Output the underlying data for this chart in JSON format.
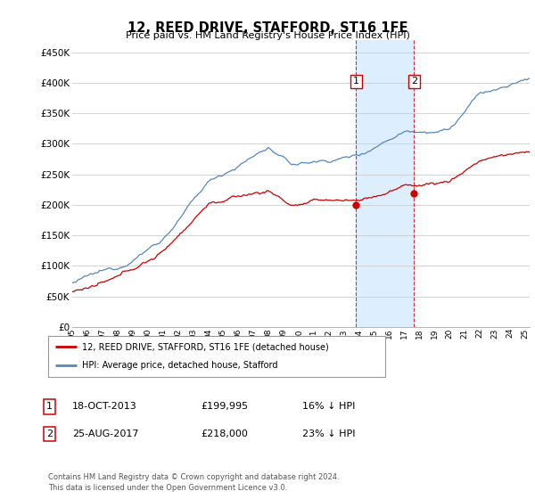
{
  "title": "12, REED DRIVE, STAFFORD, ST16 1FE",
  "subtitle": "Price paid vs. HM Land Registry's House Price Index (HPI)",
  "ytick_values": [
    0,
    50000,
    100000,
    150000,
    200000,
    250000,
    300000,
    350000,
    400000,
    450000
  ],
  "ylim": [
    0,
    470000
  ],
  "xlim_start": 1995.0,
  "xlim_end": 2025.3,
  "hpi_color": "#5588bb",
  "price_color": "#cc0000",
  "sale1_date": 2013.8,
  "sale1_price": 199995,
  "sale2_date": 2017.65,
  "sale2_price": 218000,
  "legend_label1": "12, REED DRIVE, STAFFORD, ST16 1FE (detached house)",
  "legend_label2": "HPI: Average price, detached house, Stafford",
  "table_row1_num": "1",
  "table_row1_date": "18-OCT-2013",
  "table_row1_price": "£199,995",
  "table_row1_note": "16% ↓ HPI",
  "table_row2_num": "2",
  "table_row2_date": "25-AUG-2017",
  "table_row2_price": "£218,000",
  "table_row2_note": "23% ↓ HPI",
  "footer": "Contains HM Land Registry data © Crown copyright and database right 2024.\nThis data is licensed under the Open Government Licence v3.0.",
  "background_color": "#ffffff",
  "grid_color": "#cccccc",
  "shaded_region_color": "#ddeeff"
}
